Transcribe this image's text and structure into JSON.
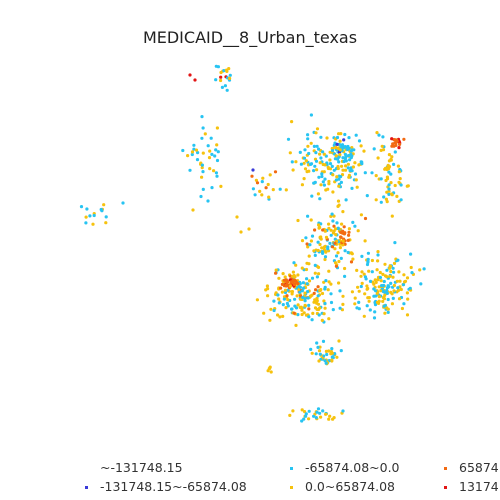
{
  "title": "MEDICAID__8_Urban_texas",
  "colors": {
    "background": "#ffffff",
    "text": "#333333"
  },
  "legend": {
    "items": [
      {
        "label": "~-131748.15",
        "color": "#ffffff"
      },
      {
        "label": "-131748.15~-65874.08",
        "color": "#3a3ad8"
      },
      {
        "label": "-65874.08~0.0",
        "color": "#27c4f2"
      },
      {
        "label": "0.0~65874.08",
        "color": "#f6c20e"
      },
      {
        "label": "65874",
        "color": "#f26a12"
      },
      {
        "label": "13174",
        "color": "#e21515"
      }
    ]
  },
  "chart_data": {
    "type": "scatter",
    "title": "MEDICAID__8_Urban_texas",
    "categories": [
      "~-131748.15",
      "-131748.15~-65874.08",
      "-65874.08~0.0",
      "0.0~65874.08",
      "65874",
      "13174"
    ],
    "note_scale": "map",
    "clusters": [
      {
        "center": [
          205,
          160
        ],
        "spread": [
          18,
          30
        ],
        "mix": [
          0.55,
          0.45,
          0,
          0,
          0
        ],
        "count": 40
      },
      {
        "center": [
          222,
          78
        ],
        "spread": [
          10,
          16
        ],
        "mix": [
          0.6,
          0.3,
          0,
          0.1,
          0
        ],
        "count": 20
      },
      {
        "center": [
          95,
          210
        ],
        "spread": [
          12,
          10
        ],
        "mix": [
          0.6,
          0.4,
          0,
          0,
          0
        ],
        "count": 14
      },
      {
        "center": [
          268,
          187
        ],
        "spread": [
          14,
          12
        ],
        "mix": [
          0.3,
          0.5,
          0.2,
          0,
          0
        ],
        "count": 18
      },
      {
        "center": [
          330,
          165
        ],
        "spread": [
          30,
          25
        ],
        "mix": [
          0.45,
          0.55,
          0,
          0,
          0
        ],
        "count": 180
      },
      {
        "center": [
          343,
          150
        ],
        "spread": [
          10,
          8
        ],
        "mix": [
          0.7,
          0.2,
          0,
          0,
          0.1
        ],
        "count": 40
      },
      {
        "center": [
          390,
          175
        ],
        "spread": [
          12,
          28
        ],
        "mix": [
          0.4,
          0.6,
          0,
          0,
          0
        ],
        "count": 60
      },
      {
        "center": [
          397,
          143
        ],
        "spread": [
          6,
          4
        ],
        "mix": [
          0,
          0,
          0.8,
          0.2,
          0
        ],
        "count": 18
      },
      {
        "center": [
          330,
          240
        ],
        "spread": [
          22,
          25
        ],
        "mix": [
          0.35,
          0.55,
          0.1,
          0,
          0
        ],
        "count": 130
      },
      {
        "center": [
          300,
          295
        ],
        "spread": [
          30,
          22
        ],
        "mix": [
          0.35,
          0.55,
          0.1,
          0,
          0
        ],
        "count": 200
      },
      {
        "center": [
          290,
          283
        ],
        "spread": [
          6,
          5
        ],
        "mix": [
          0,
          0.3,
          0.6,
          0.1,
          0
        ],
        "count": 40
      },
      {
        "center": [
          385,
          285
        ],
        "spread": [
          25,
          25
        ],
        "mix": [
          0.35,
          0.65,
          0,
          0,
          0
        ],
        "count": 170
      },
      {
        "center": [
          325,
          355
        ],
        "spread": [
          10,
          10
        ],
        "mix": [
          0.5,
          0.5,
          0,
          0,
          0
        ],
        "count": 40
      },
      {
        "center": [
          315,
          415
        ],
        "spread": [
          18,
          6
        ],
        "mix": [
          0.5,
          0.5,
          0,
          0,
          0
        ],
        "count": 30
      },
      {
        "center": [
          270,
          370
        ],
        "spread": [
          2,
          2
        ],
        "mix": [
          0,
          1,
          0,
          0,
          0
        ],
        "count": 5
      },
      {
        "center": [
          343,
          235
        ],
        "spread": [
          6,
          8
        ],
        "mix": [
          0,
          0.3,
          0.7,
          0,
          0
        ],
        "count": 20
      }
    ]
  }
}
